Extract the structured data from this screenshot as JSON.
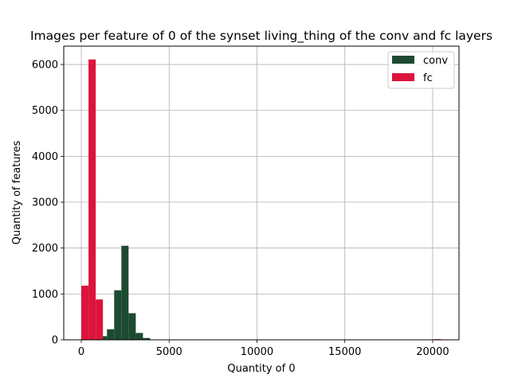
{
  "chart_data": {
    "type": "histogram",
    "title": "Images per feature of 0 of the synset living_thing of the conv and fc layers",
    "xlabel": "Quantity of 0",
    "ylabel": "Quantity of features",
    "xlim": [
      -1000,
      21500
    ],
    "ylim": [
      0,
      6400
    ],
    "xticks": [
      0,
      5000,
      10000,
      15000,
      20000
    ],
    "xtick_labels": [
      "0",
      "5000",
      "10000",
      "15000",
      "20000"
    ],
    "yticks": [
      0,
      1000,
      2000,
      3000,
      4000,
      5000,
      6000
    ],
    "ytick_labels": [
      "0",
      "1000",
      "2000",
      "3000",
      "4000",
      "5000",
      "6000"
    ],
    "grid": true,
    "legend_position": "top-right",
    "series": [
      {
        "name": "conv",
        "color": "#1c4b32",
        "bins": [
          {
            "x0": 1050,
            "x1": 1460,
            "count": 80
          },
          {
            "x0": 1460,
            "x1": 1870,
            "count": 230
          },
          {
            "x0": 1870,
            "x1": 2280,
            "count": 1080
          },
          {
            "x0": 2280,
            "x1": 2690,
            "count": 2050
          },
          {
            "x0": 2690,
            "x1": 3100,
            "count": 580
          },
          {
            "x0": 3100,
            "x1": 3510,
            "count": 150
          },
          {
            "x0": 3510,
            "x1": 3920,
            "count": 40
          }
        ]
      },
      {
        "name": "fc",
        "color": "#dc143c",
        "bins": [
          {
            "x0": 0,
            "x1": 410,
            "count": 1180
          },
          {
            "x0": 410,
            "x1": 820,
            "count": 6110
          },
          {
            "x0": 820,
            "x1": 1230,
            "count": 880
          },
          {
            "x0": 20080,
            "x1": 20490,
            "count": 15
          }
        ]
      }
    ]
  }
}
